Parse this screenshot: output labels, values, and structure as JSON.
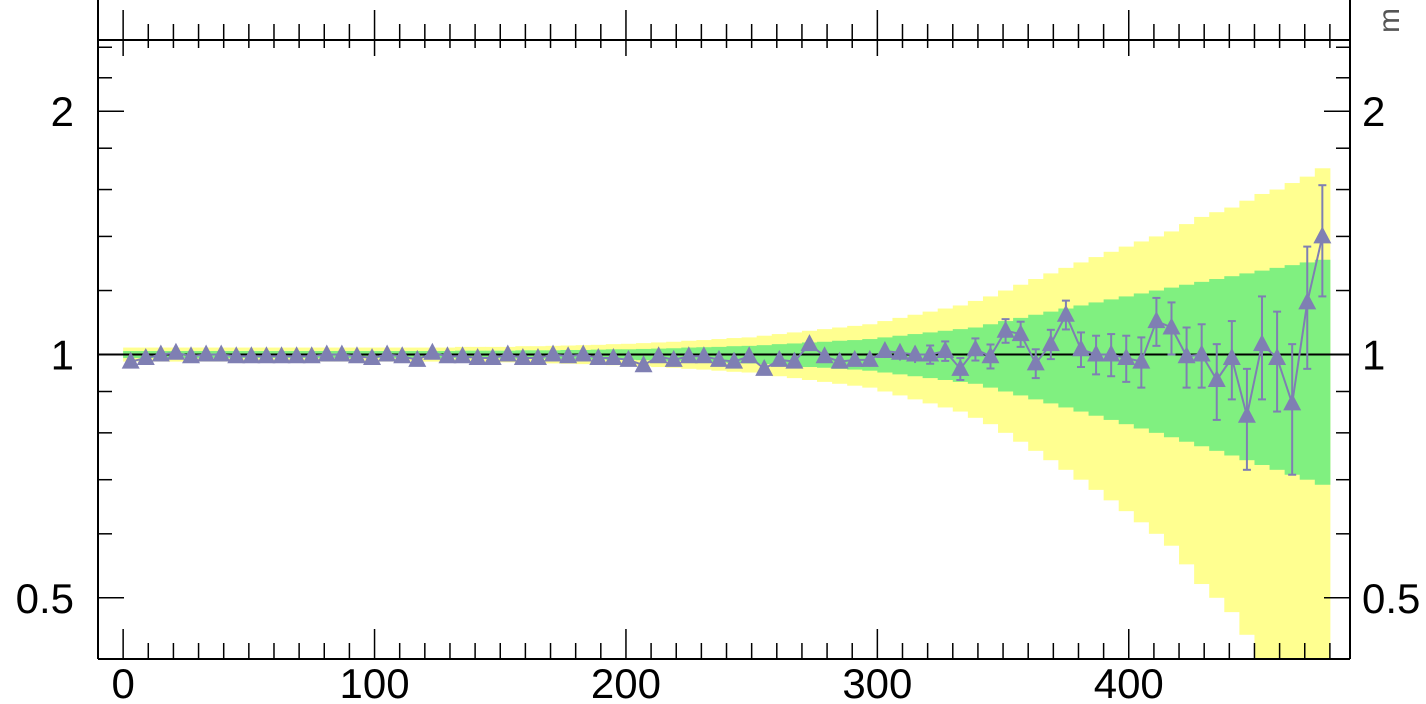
{
  "chart_data": {
    "type": "scatter",
    "title": "",
    "xlabel": "",
    "ylabel": "",
    "xlim": [
      -10,
      488
    ],
    "ylim": [
      0.42,
      2.45
    ],
    "y_scale": "log",
    "x_ticks": [
      0,
      100,
      200,
      300,
      400
    ],
    "x_tick_labels": [
      "0",
      "100",
      "200",
      "300",
      "400"
    ],
    "y_ticks": [
      0.5,
      1,
      2
    ],
    "y_tick_labels": [
      "0.5",
      "1",
      "2"
    ],
    "side_label_fragment": "m",
    "reference_line": 1,
    "grid": false,
    "colors": {
      "points": "#7f7fb3",
      "band_inner": "#80f080",
      "band_outer": "#ffff90",
      "axes": "#000000"
    },
    "bands": {
      "bin_width": 6,
      "x_start": 0,
      "outer_half_width": [
        0.02,
        0.02,
        0.02,
        0.02,
        0.02,
        0.02,
        0.02,
        0.02,
        0.02,
        0.02,
        0.02,
        0.02,
        0.02,
        0.02,
        0.02,
        0.02,
        0.02,
        0.02,
        0.02,
        0.02,
        0.02,
        0.02,
        0.022,
        0.022,
        0.022,
        0.022,
        0.024,
        0.024,
        0.025,
        0.026,
        0.027,
        0.028,
        0.03,
        0.031,
        0.033,
        0.035,
        0.037,
        0.04,
        0.042,
        0.045,
        0.048,
        0.05,
        0.055,
        0.06,
        0.065,
        0.07,
        0.075,
        0.08,
        0.085,
        0.09,
        0.1,
        0.11,
        0.12,
        0.13,
        0.14,
        0.15,
        0.165,
        0.18,
        0.2,
        0.22,
        0.24,
        0.26,
        0.28,
        0.3,
        0.32,
        0.34,
        0.36,
        0.38,
        0.4,
        0.42,
        0.45,
        0.48,
        0.5,
        0.52,
        0.55,
        0.58,
        0.6,
        0.63,
        0.66,
        0.7
      ],
      "inner_half_width": [
        0.01,
        0.01,
        0.01,
        0.01,
        0.01,
        0.01,
        0.01,
        0.01,
        0.01,
        0.01,
        0.01,
        0.01,
        0.01,
        0.01,
        0.01,
        0.01,
        0.01,
        0.01,
        0.01,
        0.01,
        0.01,
        0.01,
        0.011,
        0.011,
        0.011,
        0.011,
        0.012,
        0.012,
        0.012,
        0.013,
        0.013,
        0.014,
        0.015,
        0.015,
        0.016,
        0.017,
        0.018,
        0.02,
        0.021,
        0.022,
        0.024,
        0.025,
        0.027,
        0.03,
        0.032,
        0.035,
        0.037,
        0.04,
        0.042,
        0.045,
        0.05,
        0.055,
        0.06,
        0.065,
        0.07,
        0.075,
        0.08,
        0.09,
        0.1,
        0.11,
        0.12,
        0.13,
        0.14,
        0.15,
        0.16,
        0.17,
        0.18,
        0.19,
        0.2,
        0.21,
        0.22,
        0.23,
        0.24,
        0.25,
        0.26,
        0.27,
        0.28,
        0.29,
        0.3,
        0.31
      ]
    },
    "series": [
      {
        "x": [
          3,
          9,
          15,
          21,
          27,
          33,
          39,
          45,
          51,
          57,
          63,
          69,
          75,
          81,
          87,
          93,
          99,
          105,
          111,
          117,
          123,
          129,
          135,
          141,
          147,
          153,
          159,
          165,
          171,
          177,
          183,
          189,
          195,
          201,
          207,
          213,
          219,
          225,
          231,
          237,
          243,
          249,
          255,
          261,
          267,
          273,
          279,
          285,
          291,
          297,
          303,
          309,
          315,
          321,
          327,
          333,
          339,
          345,
          351,
          357,
          363,
          369,
          375,
          381,
          387,
          393,
          399,
          405,
          411,
          417,
          423,
          429,
          435,
          441,
          447,
          453,
          459,
          465,
          471,
          477
        ],
        "y": [
          0.98,
          0.99,
          1.0,
          1.005,
          0.995,
          1.0,
          1.0,
          0.995,
          0.995,
          0.995,
          0.995,
          0.995,
          0.995,
          1.0,
          1.0,
          0.995,
          0.99,
          1.0,
          0.995,
          0.985,
          1.005,
          0.995,
          0.995,
          0.99,
          0.99,
          1.0,
          0.99,
          0.99,
          1.0,
          0.995,
          1.0,
          0.99,
          0.99,
          0.985,
          0.97,
          0.995,
          0.985,
          0.995,
          0.995,
          0.985,
          0.98,
          0.995,
          0.96,
          0.985,
          0.98,
          1.03,
          0.995,
          0.98,
          0.985,
          0.985,
          1.01,
          1.005,
          1.0,
          1.0,
          1.01,
          0.96,
          1.015,
          0.995,
          1.07,
          1.06,
          0.975,
          1.03,
          1.12,
          1.015,
          1.0,
          1.0,
          0.99,
          0.98,
          1.1,
          1.08,
          0.995,
          1.0,
          0.93,
          0.99,
          0.84,
          1.03,
          0.99,
          0.87,
          1.16,
          1.4
        ],
        "err": [
          0.01,
          0.01,
          0.01,
          0.01,
          0.01,
          0.01,
          0.01,
          0.01,
          0.01,
          0.01,
          0.01,
          0.01,
          0.01,
          0.01,
          0.01,
          0.01,
          0.01,
          0.01,
          0.01,
          0.01,
          0.01,
          0.01,
          0.01,
          0.01,
          0.01,
          0.01,
          0.01,
          0.01,
          0.01,
          0.01,
          0.01,
          0.01,
          0.01,
          0.01,
          0.01,
          0.01,
          0.01,
          0.01,
          0.01,
          0.01,
          0.01,
          0.012,
          0.012,
          0.013,
          0.014,
          0.015,
          0.016,
          0.017,
          0.018,
          0.019,
          0.02,
          0.022,
          0.024,
          0.026,
          0.028,
          0.03,
          0.032,
          0.034,
          0.036,
          0.038,
          0.04,
          0.043,
          0.046,
          0.05,
          0.055,
          0.06,
          0.065,
          0.07,
          0.075,
          0.08,
          0.085,
          0.09,
          0.1,
          0.11,
          0.12,
          0.15,
          0.14,
          0.16,
          0.2,
          0.22
        ]
      }
    ]
  }
}
